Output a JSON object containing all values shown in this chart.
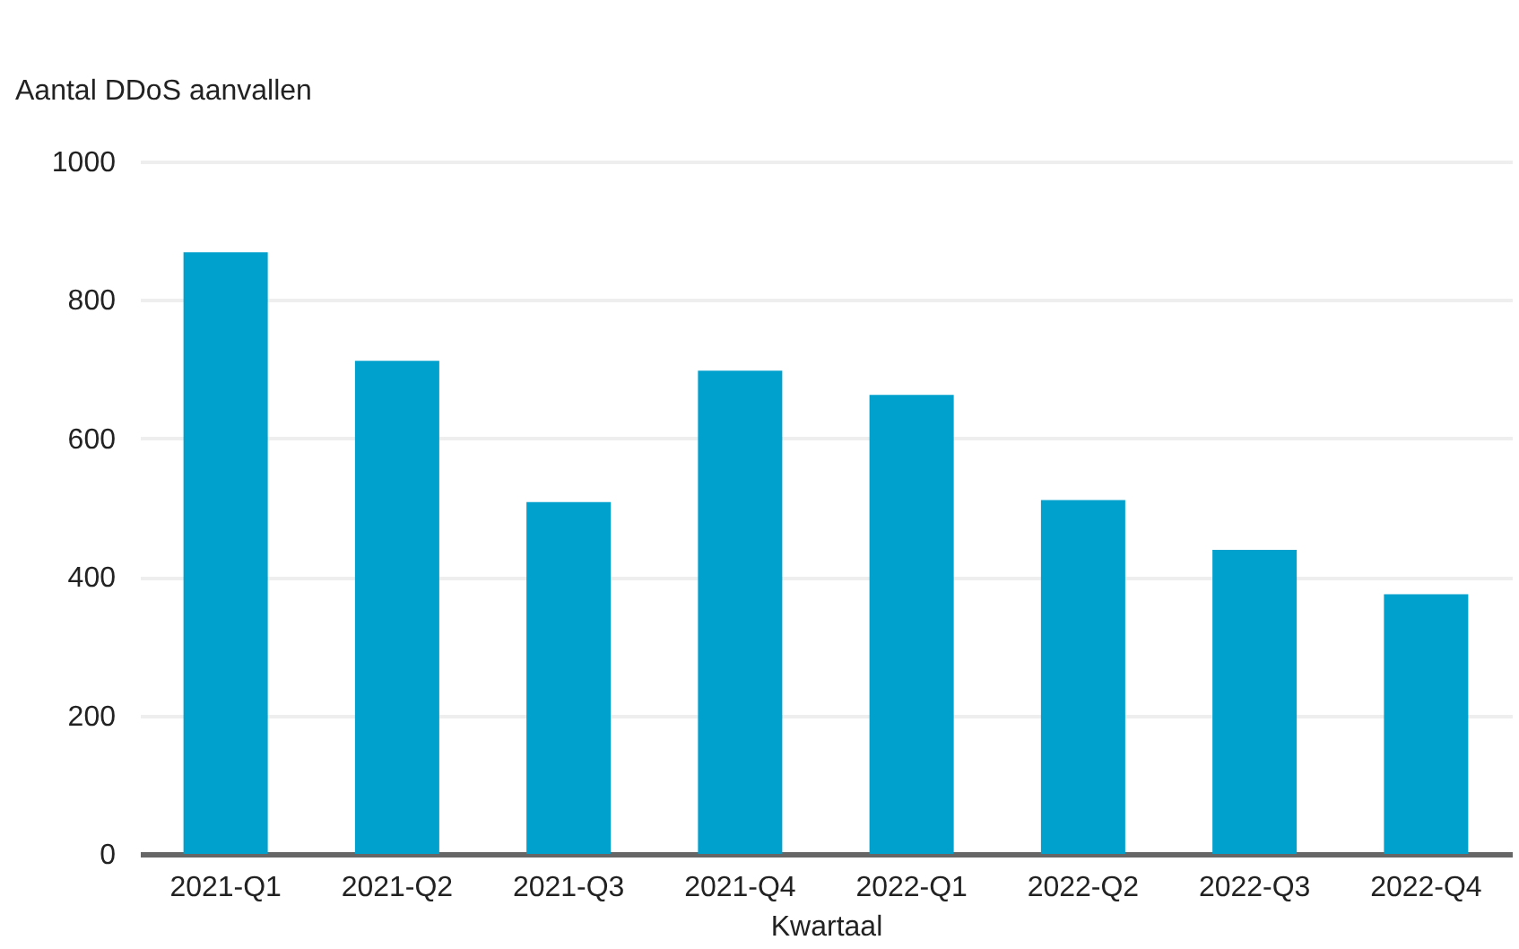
{
  "chart_data": {
    "type": "bar",
    "ylabel": "Aantal DDoS aanvallen",
    "xlabel": "Kwartaal",
    "categories": [
      "2021-Q1",
      "2021-Q2",
      "2021-Q3",
      "2021-Q4",
      "2022-Q1",
      "2022-Q2",
      "2022-Q3",
      "2022-Q4"
    ],
    "values": [
      869,
      712,
      508,
      698,
      663,
      511,
      439,
      375
    ],
    "color": "#00a1cd",
    "ylim": [
      0,
      1000
    ],
    "yticks": [
      0,
      200,
      400,
      600,
      800,
      1000
    ],
    "grid": "y"
  }
}
